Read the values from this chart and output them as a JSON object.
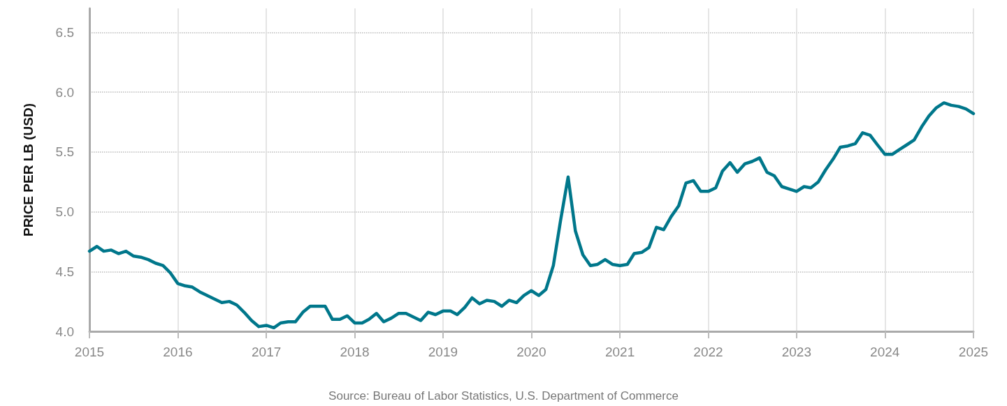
{
  "chart_data": {
    "type": "line",
    "ylabel": "PRICE PER LB (USD)",
    "annotations": [
      "Source: Bureau of Labor Statistics, U.S. Department of Commerce"
    ],
    "x": [
      "2015-01",
      "2015-02",
      "2015-03",
      "2015-04",
      "2015-05",
      "2015-06",
      "2015-07",
      "2015-08",
      "2015-09",
      "2015-10",
      "2015-11",
      "2015-12",
      "2016-01",
      "2016-02",
      "2016-03",
      "2016-04",
      "2016-05",
      "2016-06",
      "2016-07",
      "2016-08",
      "2016-09",
      "2016-10",
      "2016-11",
      "2016-12",
      "2017-01",
      "2017-02",
      "2017-03",
      "2017-04",
      "2017-05",
      "2017-06",
      "2017-07",
      "2017-08",
      "2017-09",
      "2017-10",
      "2017-11",
      "2017-12",
      "2018-01",
      "2018-02",
      "2018-03",
      "2018-04",
      "2018-05",
      "2018-06",
      "2018-07",
      "2018-08",
      "2018-09",
      "2018-10",
      "2018-11",
      "2018-12",
      "2019-01",
      "2019-02",
      "2019-03",
      "2019-04",
      "2019-05",
      "2019-06",
      "2019-07",
      "2019-08",
      "2019-09",
      "2019-10",
      "2019-11",
      "2019-12",
      "2020-01",
      "2020-02",
      "2020-03",
      "2020-04",
      "2020-05",
      "2020-06",
      "2020-07",
      "2020-08",
      "2020-09",
      "2020-10",
      "2020-11",
      "2020-12",
      "2021-01",
      "2021-02",
      "2021-03",
      "2021-04",
      "2021-05",
      "2021-06",
      "2021-07",
      "2021-08",
      "2021-09",
      "2021-10",
      "2021-11",
      "2021-12",
      "2022-01",
      "2022-02",
      "2022-03",
      "2022-04",
      "2022-05",
      "2022-06",
      "2022-07",
      "2022-08",
      "2022-09",
      "2022-10",
      "2022-11",
      "2022-12",
      "2023-01",
      "2023-02",
      "2023-03",
      "2023-04",
      "2023-05",
      "2023-06",
      "2023-07",
      "2023-08",
      "2023-09",
      "2023-10",
      "2023-11",
      "2023-12",
      "2024-01",
      "2024-02",
      "2024-03",
      "2024-04",
      "2024-05",
      "2024-06",
      "2024-07",
      "2024-08",
      "2024-09",
      "2024-10",
      "2024-11",
      "2024-12",
      "2025-01"
    ],
    "series": [
      {
        "color": "#00778b",
        "values": [
          4.67,
          4.71,
          4.67,
          4.68,
          4.65,
          4.67,
          4.63,
          4.62,
          4.6,
          4.57,
          4.55,
          4.49,
          4.4,
          4.38,
          4.37,
          4.33,
          4.3,
          4.27,
          4.24,
          4.25,
          4.22,
          4.16,
          4.09,
          4.04,
          4.05,
          4.03,
          4.07,
          4.08,
          4.08,
          4.16,
          4.21,
          4.21,
          4.21,
          4.1,
          4.1,
          4.13,
          4.07,
          4.07,
          4.1,
          4.15,
          4.08,
          4.11,
          4.15,
          4.15,
          4.12,
          4.09,
          4.16,
          4.14,
          4.17,
          4.17,
          4.14,
          4.2,
          4.28,
          4.23,
          4.26,
          4.25,
          4.21,
          4.26,
          4.24,
          4.3,
          4.34,
          4.3,
          4.35,
          4.55,
          4.93,
          5.29,
          4.84,
          4.64,
          4.55,
          4.56,
          4.6,
          4.56,
          4.55,
          4.56,
          4.65,
          4.66,
          4.7,
          4.87,
          4.85,
          4.96,
          5.05,
          5.24,
          5.26,
          5.17,
          5.17,
          5.2,
          5.34,
          5.41,
          5.33,
          5.4,
          5.42,
          5.45,
          5.33,
          5.3,
          5.21,
          5.19,
          5.17,
          5.21,
          5.2,
          5.25,
          5.35,
          5.44,
          5.54,
          5.55,
          5.57,
          5.66,
          5.64,
          5.56,
          5.48,
          5.48,
          5.52,
          5.56,
          5.6,
          5.71,
          5.8,
          5.87,
          5.91,
          5.89,
          5.88,
          5.86,
          5.82
        ]
      }
    ],
    "xlim": [
      "2015",
      "2025"
    ],
    "xticks": [
      "2015",
      "2016",
      "2017",
      "2018",
      "2019",
      "2020",
      "2021",
      "2022",
      "2023",
      "2024",
      "2025"
    ],
    "ylim": [
      4.0,
      6.7
    ],
    "yticks": [
      {
        "value": 4.0,
        "label": "4.0"
      },
      {
        "value": 4.5,
        "label": "4.5"
      },
      {
        "value": 5.0,
        "label": "5.0"
      },
      {
        "value": 5.5,
        "label": "5.5"
      },
      {
        "value": 6.0,
        "label": "6.0"
      },
      {
        "value": 6.5,
        "label": "6.5"
      }
    ],
    "grid": true,
    "marker": "none",
    "line_style": "solid"
  }
}
